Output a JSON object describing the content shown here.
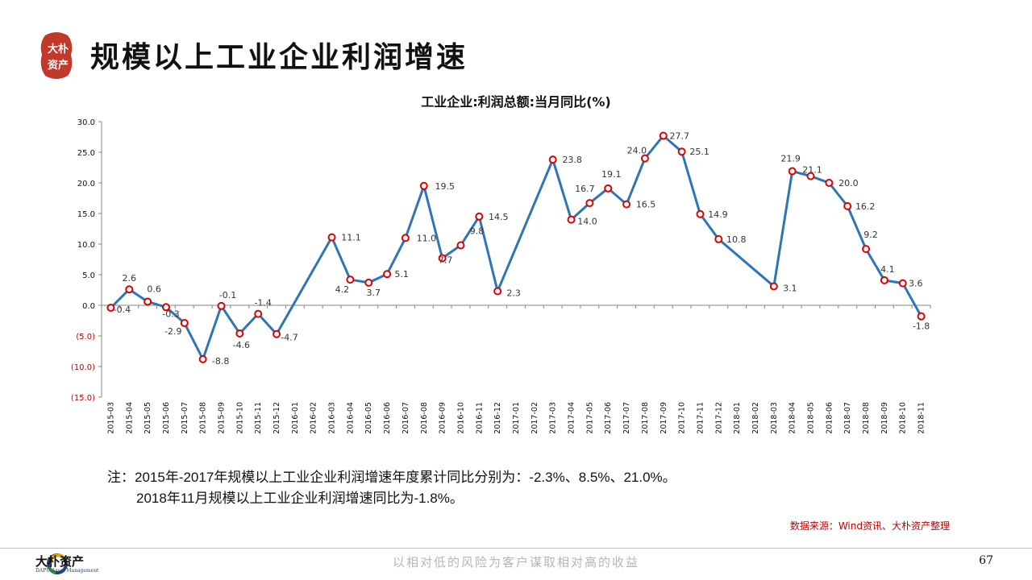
{
  "page": {
    "title": "规模以上工业企业利润增速",
    "logo_text": "大朴资产",
    "note_line1": "注：2015年-2017年规模以上工业企业利润增速年度累计同比分别为：-2.3%、8.5%、21.0%。",
    "note_line2": "2018年11月规模以上工业企业利润增速同比为-1.8%。",
    "source": "数据来源：Wind资讯、大朴资产整理",
    "footer_logo_text": "大朴资产",
    "footer_logo_sub": "DAPU Asset Management",
    "slogan": "以相对低的风险为客户谋取相对高的收益",
    "page_number": "67"
  },
  "colors": {
    "line": "#2e75b6",
    "marker": "#e00000",
    "negative_tick": "#c00000",
    "seal": "#c0392b"
  },
  "chart_data": {
    "type": "line",
    "title": "工业企业:利润总额:当月同比(%)",
    "xlabel": "",
    "ylabel": "",
    "ylim": [
      -15,
      30
    ],
    "y_ticks": [
      "30.0",
      "25.0",
      "20.0",
      "15.0",
      "10.0",
      "5.0",
      "0.0",
      "(5.0)",
      "(10.0)",
      "(15.0)"
    ],
    "categories": [
      "2015-03",
      "2015-04",
      "2015-05",
      "2015-06",
      "2015-07",
      "2015-08",
      "2015-09",
      "2015-10",
      "2015-11",
      "2015-12",
      "2016-01",
      "2016-02",
      "2016-03",
      "2016-04",
      "2016-05",
      "2016-06",
      "2016-07",
      "2016-08",
      "2016-09",
      "2016-10",
      "2016-11",
      "2016-12",
      "2017-01",
      "2017-02",
      "2017-03",
      "2017-04",
      "2017-05",
      "2017-06",
      "2017-07",
      "2017-08",
      "2017-09",
      "2017-10",
      "2017-11",
      "2017-12",
      "2018-01",
      "2018-02",
      "2018-03",
      "2018-04",
      "2018-05",
      "2018-06",
      "2018-07",
      "2018-08",
      "2018-09",
      "2018-10",
      "2018-11"
    ],
    "values": [
      -0.4,
      2.6,
      0.6,
      -0.3,
      -2.9,
      -8.8,
      -0.1,
      -4.6,
      -1.4,
      -4.7,
      null,
      null,
      11.1,
      4.2,
      3.7,
      5.1,
      11.0,
      19.5,
      7.7,
      9.8,
      14.5,
      2.3,
      null,
      null,
      23.8,
      14.0,
      16.7,
      19.1,
      16.5,
      24.0,
      27.7,
      25.1,
      14.9,
      10.8,
      null,
      null,
      3.1,
      21.9,
      21.1,
      20.0,
      16.2,
      9.2,
      4.1,
      3.6,
      -1.8
    ],
    "labels": [
      "-0.4",
      "2.6",
      "0.6",
      "-0.3",
      "-2.9",
      "-8.8",
      "-0.1",
      "-4.6",
      "-1.4",
      "-4.7",
      null,
      null,
      "11.1",
      "4.2",
      "3.7",
      "5.1",
      "11.0",
      "19.5",
      "7.7",
      "9.8",
      "14.5",
      "2.3",
      null,
      null,
      "23.8",
      "14.0",
      "16.7",
      "19.1",
      "16.5",
      "24.0",
      "27.7",
      "25.1",
      "14.9",
      "10.8",
      null,
      null,
      "3.1",
      "21.9",
      "21.1",
      "20.0",
      "16.2",
      "9.2",
      "4.1",
      "3.6",
      "-1.8"
    ],
    "legend": "none",
    "grid": false,
    "connect_gaps": true
  }
}
